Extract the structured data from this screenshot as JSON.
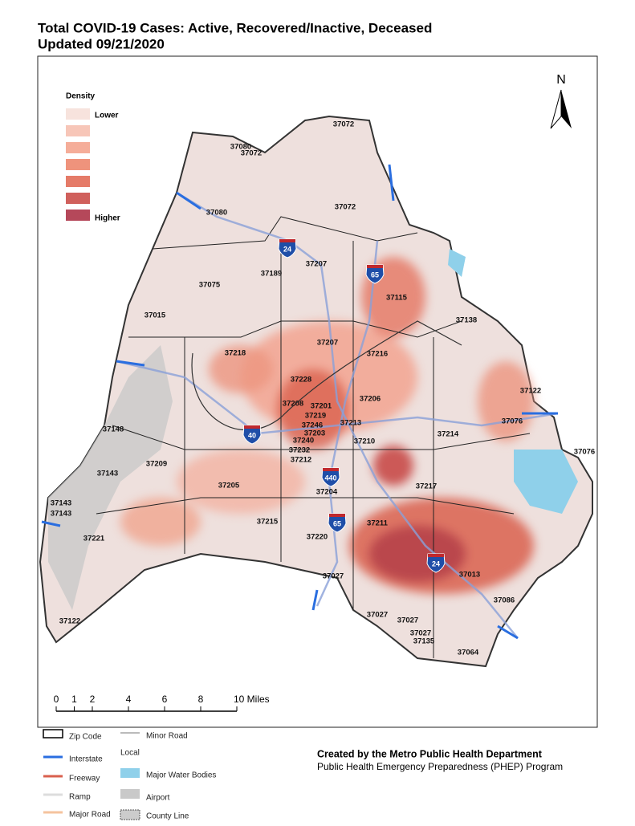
{
  "title": "Total COVID-19 Cases: Active, Recovered/Inactive, Deceased",
  "subtitle": "Updated 09/21/2020",
  "density_legend": {
    "title": "Density",
    "low": "Lower",
    "high": "Higher"
  },
  "north": "N",
  "scale_bar": {
    "ticks": [
      0,
      1,
      2,
      4,
      6,
      8,
      {
        "value": 10,
        "label": "10 Miles"
      }
    ]
  },
  "zip_labels": [
    "37072",
    "37080",
    "37072",
    "37080",
    "37072",
    "37189",
    "37207",
    "37075",
    "37115",
    "37015",
    "37138",
    "37218",
    "37207",
    "37216",
    "37228",
    "37206",
    "37208",
    "37201",
    "37219",
    "37246",
    "37213",
    "37203",
    "37240",
    "37232",
    "37212",
    "37210",
    "37214",
    "37076",
    "37122",
    "37076",
    "37148",
    "37209",
    "37143",
    "37143",
    "37143",
    "37205",
    "37204",
    "37217",
    "37215",
    "37211",
    "37221",
    "37220",
    "37013",
    "37027",
    "37086",
    "37027",
    "37027",
    "37027",
    "37135",
    "37064",
    "37122"
  ],
  "interstate_shields": [
    "24",
    "65",
    "40",
    "440",
    "65",
    "24"
  ],
  "legend": {
    "zip_code": "Zip Code",
    "interstate": "Interstate",
    "local": "Local",
    "freeway": "Freeway",
    "ramp": "Ramp",
    "major_road": "Major Road",
    "minor_road": "Minor Road",
    "water": "Major Water Bodies",
    "airport": "Airport",
    "county_line": "County Line"
  },
  "credit": {
    "line1": "Created by the Metro Public Health Department",
    "line2": "Public Health Emergency Preparedness (PHEP) Program"
  }
}
